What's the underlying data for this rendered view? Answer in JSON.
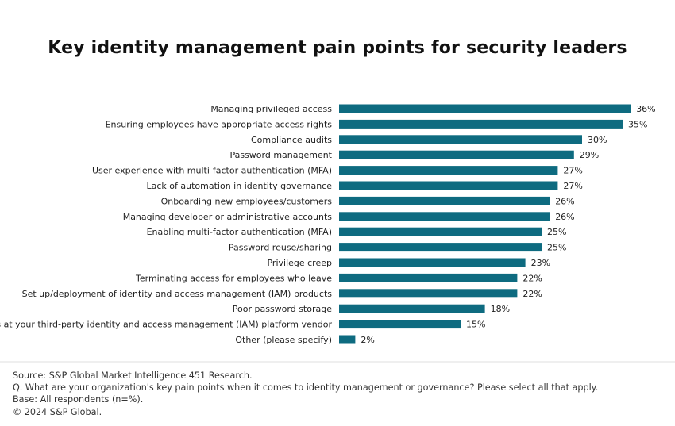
{
  "chart_data": {
    "type": "bar",
    "orientation": "horizontal",
    "title": "Key identity management pain points for security leaders",
    "categories": [
      "Managing privileged access",
      "Ensuring employees have appropriate access rights",
      "Compliance audits",
      "Password management",
      "User experience with multi-factor authentication (MFA)",
      "Lack of automation in identity governance",
      "Onboarding new employees/customers",
      "Managing developer or administrative accounts",
      "Enabling multi-factor authentication (MFA)",
      "Password reuse/sharing",
      "Privilege creep",
      "Terminating access for employees who leave",
      "Set up/deployment of identity and access management (IAM) products",
      "Poor password storage",
      "Breaches at your third-party identity and access management (IAM) platform vendor",
      "Other (please specify)"
    ],
    "values": [
      36,
      35,
      30,
      29,
      27,
      27,
      26,
      26,
      25,
      25,
      23,
      22,
      22,
      18,
      15,
      2
    ],
    "value_suffix": "%",
    "xlabel": "",
    "ylabel": "",
    "xlim": [
      0,
      36
    ],
    "grid": false,
    "bar_color": "#0e6b80"
  },
  "footer": {
    "source": "Source: S&P Global Market Intelligence 451 Research.",
    "question": "Q. What are your organization's key pain points when it comes to identity management or governance? Please select all that apply.",
    "base": "Base: All respondents (n=%).",
    "copyright": "© 2024 S&P Global."
  }
}
